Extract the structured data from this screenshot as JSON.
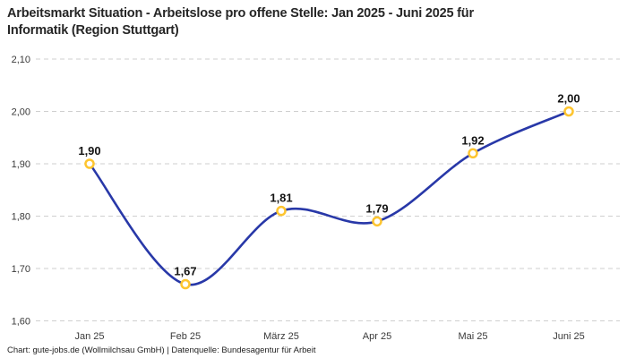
{
  "title": {
    "lines": [
      "Arbeitsmarkt Situation - Arbeitslose pro offene Stelle: Jan 2025 - Juni 2025 für",
      "Informatik (Region Stuttgart)"
    ],
    "full": "Arbeitsmarkt Situation - Arbeitslose pro offene Stelle: Jan 2025 - Juni 2025 für Informatik (Region Stuttgart)"
  },
  "footer": "Chart: gute-jobs.de (Wollmilchsau GmbH) | Datenquelle: Bundesagentur für Arbeit",
  "chart_data": {
    "type": "line",
    "line_shape": "spline",
    "categories": [
      "Jan 25",
      "Feb 25",
      "März 25",
      "Apr 25",
      "Mai 25",
      "Juni 25"
    ],
    "values": [
      1.9,
      1.67,
      1.81,
      1.79,
      1.92,
      2.0
    ],
    "value_labels": [
      "1,90",
      "1,67",
      "1,81",
      "1,79",
      "1,92",
      "2,00"
    ],
    "yticks": [
      1.6,
      1.7,
      1.8,
      1.9,
      2.0,
      2.1
    ],
    "ytick_labels": [
      "1,60",
      "1,70",
      "1,80",
      "1,90",
      "2,00",
      "2,10"
    ],
    "ylim": [
      1.6,
      2.1
    ],
    "grid": true,
    "legend": "none",
    "title": "Arbeitsmarkt Situation - Arbeitslose pro offene Stelle: Jan 2025 - Juni 2025 für Informatik (Region Stuttgart)",
    "xlabel": "",
    "ylabel": "",
    "colors": {
      "line": "#2838a8",
      "marker_ring": "#fec52f",
      "marker_fill": "#ffffff",
      "grid": "#cfcfcf",
      "tick_text": "#3a3a3a",
      "label_text": "#141414",
      "title_text": "#262626",
      "background": "#ffffff"
    }
  }
}
